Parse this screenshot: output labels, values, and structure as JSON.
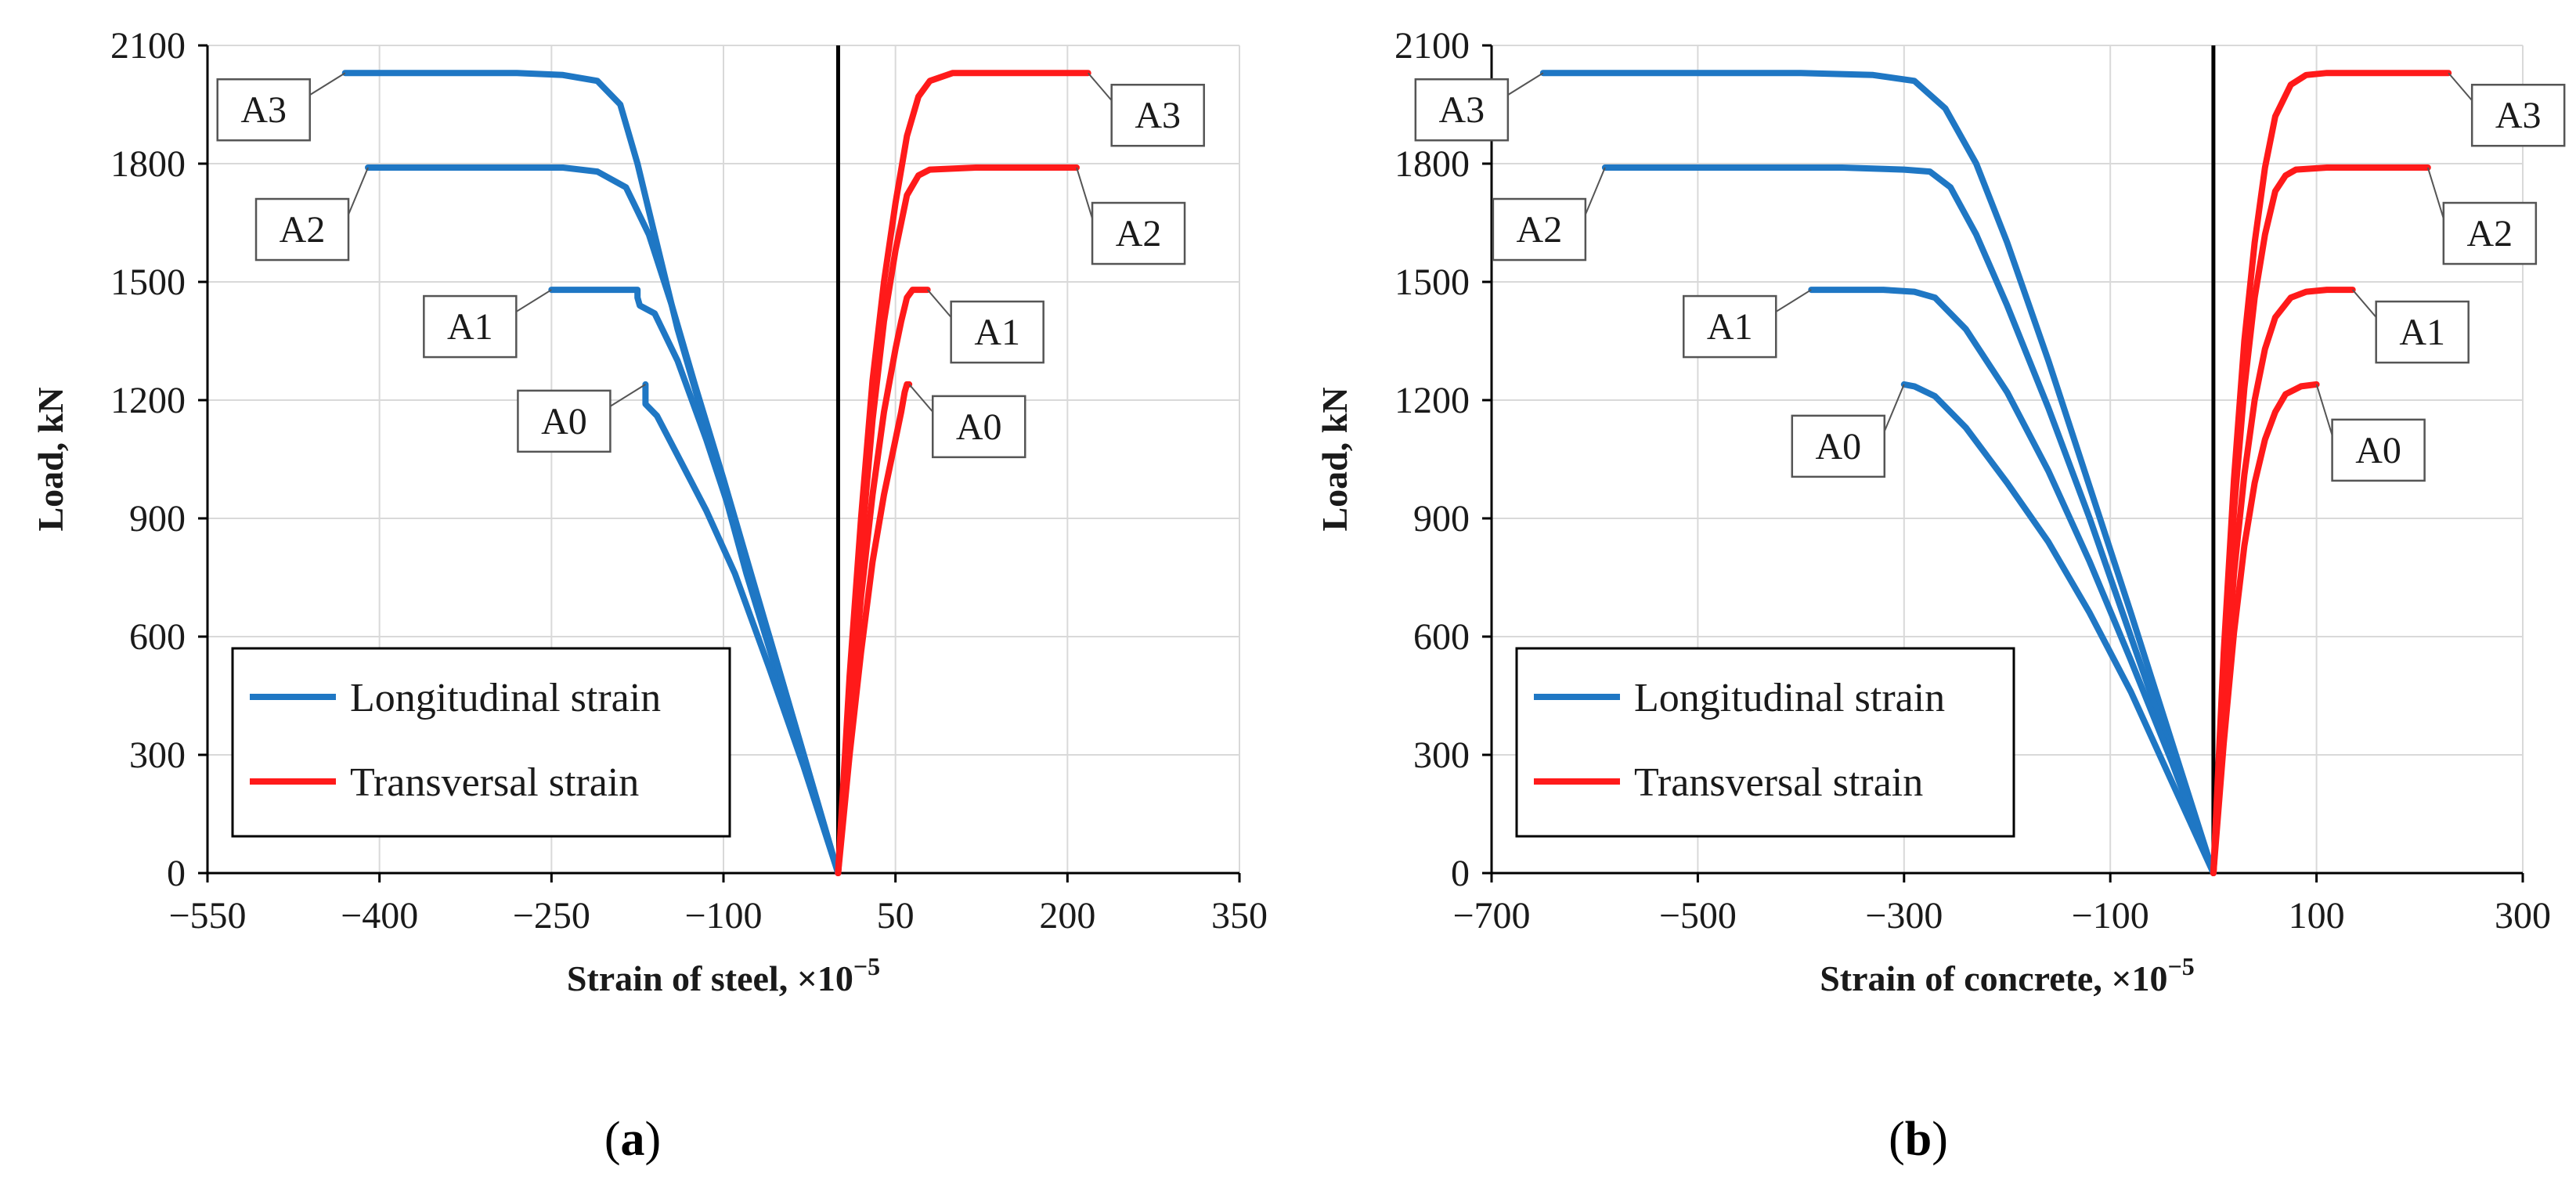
{
  "figure": {
    "colors": {
      "longitudinal": "#1f77c4",
      "transversal": "#ff1a1a",
      "grid": "#d9d9d9",
      "axis": "#000000"
    }
  },
  "chart_data": [
    {
      "type": "line",
      "panel_label": "(a)",
      "panel_letter": "a",
      "xlabel": "Strain of steel, ×10",
      "xlabel_exp": "−5",
      "ylabel": "Load, kN",
      "xlim": [
        -550,
        350
      ],
      "ylim": [
        0,
        2100
      ],
      "xticks": [
        -550,
        -400,
        -250,
        -100,
        50,
        200,
        350
      ],
      "xtick_labels": [
        "−550",
        "−400",
        "−250",
        "−100",
        "50",
        "200",
        "350"
      ],
      "yticks": [
        0,
        300,
        600,
        900,
        1200,
        1500,
        1800,
        2100
      ],
      "ytick_labels": [
        "0",
        "300",
        "600",
        "900",
        "1200",
        "1500",
        "1800",
        "2100"
      ],
      "grid": true,
      "legend": {
        "position": "bottom-left",
        "entries": [
          {
            "label": "Longitudinal strain",
            "series": "longitudinal"
          },
          {
            "label": "Transversal strain",
            "series": "transversal"
          }
        ]
      },
      "callouts": [
        {
          "text": "A3",
          "x": -430,
          "y": 2030,
          "side": "left",
          "series": "longitudinal"
        },
        {
          "text": "A2",
          "x": -410,
          "y": 1790,
          "side": "left-low",
          "series": "longitudinal"
        },
        {
          "text": "A1",
          "x": -250,
          "y": 1480,
          "side": "left",
          "series": "longitudinal"
        },
        {
          "text": "A0",
          "x": -168,
          "y": 1240,
          "side": "left",
          "series": "longitudinal"
        },
        {
          "text": "A3",
          "x": 218,
          "y": 2030,
          "side": "right",
          "series": "transversal"
        },
        {
          "text": "A2",
          "x": 208,
          "y": 1790,
          "side": "right-low",
          "series": "transversal"
        },
        {
          "text": "A1",
          "x": 78,
          "y": 1480,
          "side": "right",
          "series": "transversal"
        },
        {
          "text": "A0",
          "x": 62,
          "y": 1240,
          "side": "right",
          "series": "transversal"
        }
      ],
      "series": [
        {
          "name": "A3 longitudinal",
          "kind": "longitudinal",
          "x": [
            0,
            -40,
            -80,
            -110,
            -140,
            -160,
            -175,
            -190,
            -210,
            -240,
            -280,
            -330,
            -380,
            -430
          ],
          "y": [
            0,
            380,
            760,
            1080,
            1380,
            1620,
            1800,
            1950,
            2010,
            2025,
            2030,
            2030,
            2030,
            2030
          ]
        },
        {
          "name": "A2 longitudinal",
          "kind": "longitudinal",
          "x": [
            0,
            -35,
            -70,
            -100,
            -125,
            -145,
            -165,
            -185,
            -210,
            -240,
            -280,
            -330,
            -370,
            -410
          ],
          "y": [
            0,
            350,
            700,
            1000,
            1240,
            1440,
            1620,
            1740,
            1780,
            1790,
            1790,
            1790,
            1790,
            1790
          ]
        },
        {
          "name": "A1 longitudinal",
          "kind": "longitudinal",
          "x": [
            0,
            -30,
            -60,
            -90,
            -115,
            -140,
            -160,
            -173,
            -175,
            -175,
            -200,
            -225,
            -250
          ],
          "y": [
            0,
            300,
            600,
            880,
            1100,
            1300,
            1420,
            1440,
            1460,
            1480,
            1480,
            1480,
            1480
          ]
        },
        {
          "name": "A0 longitudinal",
          "kind": "longitudinal",
          "x": [
            0,
            -30,
            -60,
            -90,
            -115,
            -140,
            -158,
            -168,
            -168,
            -168
          ],
          "y": [
            0,
            270,
            520,
            760,
            920,
            1060,
            1160,
            1190,
            1220,
            1240
          ]
        },
        {
          "name": "A3 transversal",
          "kind": "transversal",
          "x": [
            0,
            10,
            20,
            30,
            40,
            50,
            60,
            70,
            80,
            100,
            150,
            218
          ],
          "y": [
            0,
            500,
            900,
            1250,
            1500,
            1700,
            1870,
            1970,
            2010,
            2030,
            2030,
            2030
          ]
        },
        {
          "name": "A2 transversal",
          "kind": "transversal",
          "x": [
            0,
            10,
            20,
            30,
            40,
            50,
            60,
            70,
            80,
            120,
            170,
            208
          ],
          "y": [
            0,
            450,
            820,
            1150,
            1400,
            1580,
            1720,
            1770,
            1785,
            1790,
            1790,
            1790
          ]
        },
        {
          "name": "A1 transversal",
          "kind": "transversal",
          "x": [
            0,
            10,
            20,
            30,
            40,
            50,
            55,
            60,
            65,
            70,
            78
          ],
          "y": [
            0,
            380,
            700,
            960,
            1170,
            1330,
            1400,
            1460,
            1480,
            1480,
            1480
          ]
        },
        {
          "name": "A0 transversal",
          "kind": "transversal",
          "x": [
            0,
            10,
            20,
            30,
            40,
            50,
            55,
            58,
            60,
            62
          ],
          "y": [
            0,
            300,
            560,
            790,
            960,
            1100,
            1170,
            1220,
            1240,
            1240
          ]
        }
      ]
    },
    {
      "type": "line",
      "panel_label": "(b)",
      "panel_letter": "b",
      "xlabel": "Strain of concrete, ×10",
      "xlabel_exp": "−5",
      "ylabel": "Load, kN",
      "xlim": [
        -700,
        300
      ],
      "ylim": [
        0,
        2100
      ],
      "xticks": [
        -700,
        -500,
        -300,
        -100,
        100,
        300
      ],
      "xtick_labels": [
        "−700",
        "−500",
        "−300",
        "−100",
        "100",
        "300"
      ],
      "yticks": [
        0,
        300,
        600,
        900,
        1200,
        1500,
        1800,
        2100
      ],
      "ytick_labels": [
        "0",
        "300",
        "600",
        "900",
        "1200",
        "1500",
        "1800",
        "2100"
      ],
      "grid": true,
      "legend": {
        "position": "bottom-left",
        "entries": [
          {
            "label": "Longitudinal strain",
            "series": "longitudinal"
          },
          {
            "label": "Transversal strain",
            "series": "transversal"
          }
        ]
      },
      "callouts": [
        {
          "text": "A3",
          "x": -650,
          "y": 2030,
          "side": "left",
          "series": "longitudinal"
        },
        {
          "text": "A2",
          "x": -590,
          "y": 1790,
          "side": "left-low",
          "series": "longitudinal"
        },
        {
          "text": "A1",
          "x": -390,
          "y": 1480,
          "side": "left",
          "series": "longitudinal"
        },
        {
          "text": "A0",
          "x": -300,
          "y": 1240,
          "side": "left-low",
          "series": "longitudinal"
        },
        {
          "text": "A3",
          "x": 228,
          "y": 2030,
          "side": "right",
          "series": "transversal"
        },
        {
          "text": "A2",
          "x": 208,
          "y": 1790,
          "side": "right-low",
          "series": "transversal"
        },
        {
          "text": "A1",
          "x": 135,
          "y": 1480,
          "side": "right",
          "series": "transversal"
        },
        {
          "text": "A0",
          "x": 100,
          "y": 1240,
          "side": "right-low",
          "series": "transversal"
        }
      ],
      "series": [
        {
          "name": "A3 longitudinal",
          "kind": "longitudinal",
          "x": [
            0,
            -40,
            -80,
            -120,
            -160,
            -200,
            -230,
            -260,
            -290,
            -330,
            -400,
            -500,
            -580,
            -650
          ],
          "y": [
            0,
            330,
            660,
            980,
            1300,
            1600,
            1800,
            1940,
            2010,
            2025,
            2030,
            2030,
            2030,
            2030
          ]
        },
        {
          "name": "A2 longitudinal",
          "kind": "longitudinal",
          "x": [
            0,
            -40,
            -80,
            -120,
            -160,
            -200,
            -230,
            -255,
            -275,
            -300,
            -360,
            -450,
            -530,
            -590
          ],
          "y": [
            0,
            300,
            600,
            900,
            1180,
            1440,
            1620,
            1740,
            1780,
            1785,
            1790,
            1790,
            1790,
            1790
          ]
        },
        {
          "name": "A1 longitudinal",
          "kind": "longitudinal",
          "x": [
            0,
            -40,
            -80,
            -120,
            -160,
            -200,
            -240,
            -270,
            -290,
            -320,
            -360,
            -390
          ],
          "y": [
            0,
            280,
            540,
            790,
            1020,
            1220,
            1380,
            1460,
            1475,
            1480,
            1480,
            1480
          ]
        },
        {
          "name": "A0 longitudinal",
          "kind": "longitudinal",
          "x": [
            0,
            -40,
            -80,
            -120,
            -160,
            -200,
            -240,
            -270,
            -290,
            -300
          ],
          "y": [
            0,
            230,
            460,
            660,
            840,
            990,
            1130,
            1210,
            1235,
            1240
          ]
        },
        {
          "name": "A3 transversal",
          "kind": "transversal",
          "x": [
            0,
            10,
            20,
            30,
            40,
            50,
            60,
            75,
            90,
            110,
            160,
            228
          ],
          "y": [
            0,
            560,
            1000,
            1350,
            1600,
            1790,
            1920,
            2000,
            2025,
            2030,
            2030,
            2030
          ]
        },
        {
          "name": "A2 transversal",
          "kind": "transversal",
          "x": [
            0,
            10,
            20,
            30,
            40,
            50,
            60,
            70,
            80,
            110,
            160,
            208
          ],
          "y": [
            0,
            520,
            920,
            1230,
            1460,
            1620,
            1730,
            1770,
            1785,
            1790,
            1790,
            1790
          ]
        },
        {
          "name": "A1 transversal",
          "kind": "transversal",
          "x": [
            0,
            10,
            20,
            30,
            40,
            50,
            60,
            75,
            90,
            110,
            135
          ],
          "y": [
            0,
            420,
            760,
            1010,
            1200,
            1330,
            1410,
            1460,
            1475,
            1480,
            1480
          ]
        },
        {
          "name": "A0 transversal",
          "kind": "transversal",
          "x": [
            0,
            10,
            20,
            30,
            40,
            50,
            60,
            70,
            85,
            100
          ],
          "y": [
            0,
            330,
            610,
            830,
            990,
            1100,
            1170,
            1215,
            1235,
            1240
          ]
        }
      ]
    }
  ]
}
